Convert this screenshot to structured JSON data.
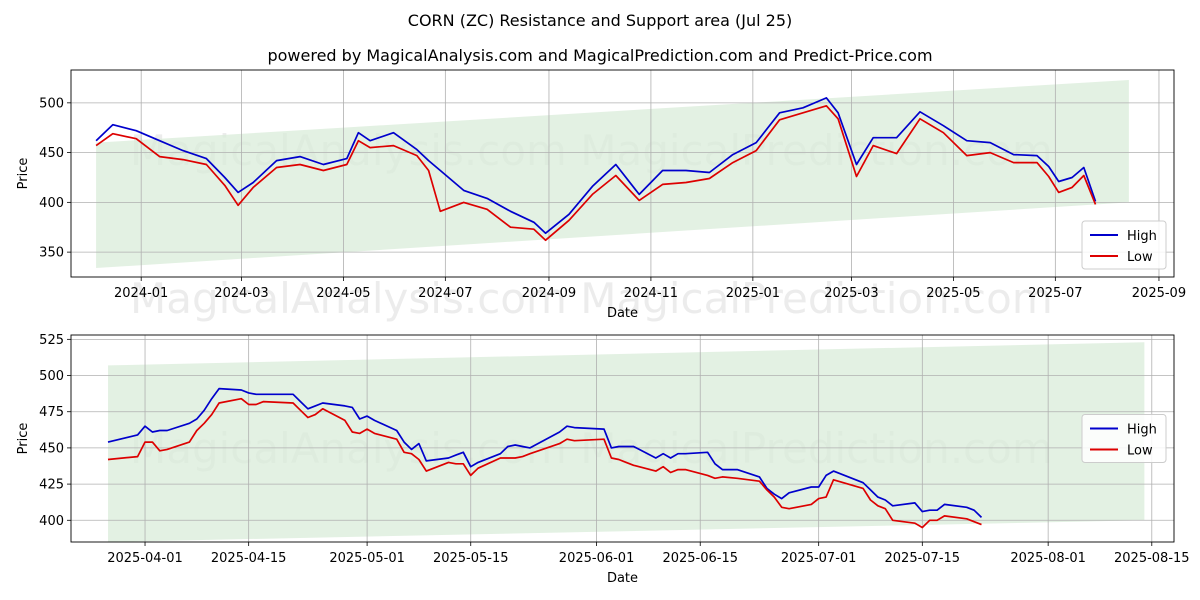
{
  "title": "CORN (ZC) Resistance and Support area (Jul 25)",
  "subtitle": "powered by MagicalAnalysis.com and MagicalPrediction.com and Predict-Price.com",
  "watermark": "MagicalAnalysis.com    MagicalPrediction.com",
  "colors": {
    "high": "#0000cc",
    "low": "#dd0000",
    "band": "#d9ecd9",
    "grid": "#b0b0b0"
  },
  "chart_data": [
    {
      "type": "line",
      "xlabel": "Date",
      "ylabel": "Price",
      "xlim": [
        "2023-11-20",
        "2025-09-10"
      ],
      "ylim": [
        325,
        533
      ],
      "xticks": [
        "2024-01",
        "2024-03",
        "2024-05",
        "2024-07",
        "2024-09",
        "2024-11",
        "2025-01",
        "2025-03",
        "2025-05",
        "2025-07",
        "2025-09"
      ],
      "xtick_dates": [
        "2024-01-01",
        "2024-03-01",
        "2024-05-01",
        "2024-07-01",
        "2024-09-01",
        "2024-11-01",
        "2025-01-01",
        "2025-03-01",
        "2025-05-01",
        "2025-07-01",
        "2025-09-01"
      ],
      "yticks": [
        350,
        400,
        450,
        500
      ],
      "grid": true,
      "legend": "lower right",
      "band": {
        "x": [
          "2023-12-05",
          "2025-08-14"
        ],
        "upper": [
          460,
          523
        ],
        "lower": [
          334,
          400
        ]
      },
      "x": [
        "2023-12-05",
        "2023-12-15",
        "2023-12-29",
        "2024-01-12",
        "2024-01-26",
        "2024-02-09",
        "2024-02-20",
        "2024-02-28",
        "2024-03-08",
        "2024-03-22",
        "2024-04-05",
        "2024-04-19",
        "2024-05-03",
        "2024-05-10",
        "2024-05-17",
        "2024-05-31",
        "2024-06-14",
        "2024-06-21",
        "2024-06-28",
        "2024-07-12",
        "2024-07-26",
        "2024-08-09",
        "2024-08-23",
        "2024-08-30",
        "2024-09-13",
        "2024-09-27",
        "2024-10-11",
        "2024-10-25",
        "2024-11-08",
        "2024-11-22",
        "2024-12-06",
        "2024-12-20",
        "2025-01-03",
        "2025-01-17",
        "2025-01-31",
        "2025-02-14",
        "2025-02-21",
        "2025-03-04",
        "2025-03-14",
        "2025-03-28",
        "2025-04-11",
        "2025-04-25",
        "2025-05-09",
        "2025-05-23",
        "2025-06-06",
        "2025-06-20",
        "2025-06-27",
        "2025-07-03",
        "2025-07-11",
        "2025-07-18",
        "2025-07-25"
      ],
      "series": [
        {
          "name": "High",
          "values": [
            462,
            478,
            472,
            462,
            452,
            444,
            425,
            410,
            420,
            442,
            446,
            438,
            444,
            470,
            462,
            470,
            453,
            442,
            432,
            412,
            404,
            391,
            380,
            369,
            388,
            416,
            438,
            408,
            432,
            432,
            430,
            448,
            460,
            490,
            495,
            505,
            490,
            438,
            465,
            465,
            491,
            477,
            462,
            460,
            448,
            447,
            436,
            421,
            425,
            435,
            401
          ]
        },
        {
          "name": "Low",
          "values": [
            457,
            469,
            464,
            446,
            443,
            438,
            417,
            397,
            415,
            435,
            438,
            432,
            438,
            462,
            455,
            457,
            447,
            432,
            391,
            400,
            393,
            375,
            373,
            362,
            382,
            408,
            427,
            402,
            418,
            420,
            424,
            440,
            452,
            483,
            490,
            497,
            484,
            426,
            457,
            449,
            484,
            470,
            447,
            450,
            440,
            440,
            426,
            410,
            415,
            427,
            398
          ]
        }
      ]
    },
    {
      "type": "line",
      "xlabel": "Date",
      "ylabel": "Price",
      "xlim": [
        "2025-03-22",
        "2025-08-18"
      ],
      "ylim": [
        385,
        528
      ],
      "xticks": [
        "2025-04-01",
        "2025-04-15",
        "2025-05-01",
        "2025-05-15",
        "2025-06-01",
        "2025-06-15",
        "2025-07-01",
        "2025-07-15",
        "2025-08-01",
        "2025-08-15"
      ],
      "yticks": [
        400,
        425,
        450,
        475,
        500,
        525
      ],
      "grid": true,
      "legend": "right",
      "band": {
        "x": [
          "2025-03-27",
          "2025-08-14"
        ],
        "upper": [
          507,
          523
        ],
        "lower": [
          385,
          400
        ]
      },
      "x": [
        "2025-03-27",
        "2025-03-31",
        "2025-04-01",
        "2025-04-02",
        "2025-04-03",
        "2025-04-04",
        "2025-04-07",
        "2025-04-08",
        "2025-04-09",
        "2025-04-10",
        "2025-04-11",
        "2025-04-14",
        "2025-04-15",
        "2025-04-16",
        "2025-04-17",
        "2025-04-21",
        "2025-04-22",
        "2025-04-23",
        "2025-04-24",
        "2025-04-25",
        "2025-04-28",
        "2025-04-29",
        "2025-04-30",
        "2025-05-01",
        "2025-05-02",
        "2025-05-05",
        "2025-05-06",
        "2025-05-07",
        "2025-05-08",
        "2025-05-09",
        "2025-05-12",
        "2025-05-13",
        "2025-05-14",
        "2025-05-15",
        "2025-05-16",
        "2025-05-19",
        "2025-05-20",
        "2025-05-21",
        "2025-05-22",
        "2025-05-23",
        "2025-05-27",
        "2025-05-28",
        "2025-05-29",
        "2025-06-02",
        "2025-06-03",
        "2025-06-04",
        "2025-06-05",
        "2025-06-06",
        "2025-06-09",
        "2025-06-10",
        "2025-06-11",
        "2025-06-12",
        "2025-06-13",
        "2025-06-16",
        "2025-06-17",
        "2025-06-18",
        "2025-06-20",
        "2025-06-23",
        "2025-06-24",
        "2025-06-25",
        "2025-06-26",
        "2025-06-27",
        "2025-06-30",
        "2025-07-01",
        "2025-07-02",
        "2025-07-03",
        "2025-07-07",
        "2025-07-08",
        "2025-07-09",
        "2025-07-10",
        "2025-07-11",
        "2025-07-14",
        "2025-07-15",
        "2025-07-16",
        "2025-07-17",
        "2025-07-18",
        "2025-07-21",
        "2025-07-22",
        "2025-07-23"
      ],
      "series": [
        {
          "name": "High",
          "values": [
            454,
            459,
            465,
            461,
            462,
            462,
            467,
            470,
            476,
            484,
            491,
            490,
            488,
            487,
            487,
            487,
            482,
            477,
            479,
            481,
            479,
            478,
            470,
            472,
            469,
            462,
            454,
            449,
            453,
            441,
            443,
            445,
            447,
            437,
            440,
            446,
            451,
            452,
            451,
            450,
            461,
            465,
            464,
            463,
            450,
            451,
            451,
            451,
            443,
            446,
            443,
            446,
            446,
            447,
            439,
            435,
            435,
            430,
            422,
            418,
            415,
            419,
            423,
            423,
            431,
            434,
            426,
            421,
            416,
            414,
            410,
            412,
            406,
            407,
            407,
            411,
            409,
            407,
            402
          ]
        },
        {
          "name": "Low",
          "values": [
            442,
            444,
            454,
            454,
            448,
            449,
            454,
            462,
            467,
            473,
            481,
            484,
            480,
            480,
            482,
            481,
            476,
            471,
            473,
            477,
            469,
            461,
            460,
            463,
            460,
            456,
            447,
            446,
            442,
            434,
            440,
            439,
            439,
            431,
            436,
            443,
            443,
            443,
            444,
            446,
            453,
            456,
            455,
            456,
            443,
            442,
            440,
            438,
            434,
            437,
            433,
            435,
            435,
            431,
            429,
            430,
            429,
            427,
            421,
            416,
            409,
            408,
            411,
            415,
            416,
            428,
            422,
            414,
            410,
            408,
            400,
            398,
            395,
            400,
            400,
            403,
            401,
            399,
            397
          ]
        }
      ]
    }
  ]
}
